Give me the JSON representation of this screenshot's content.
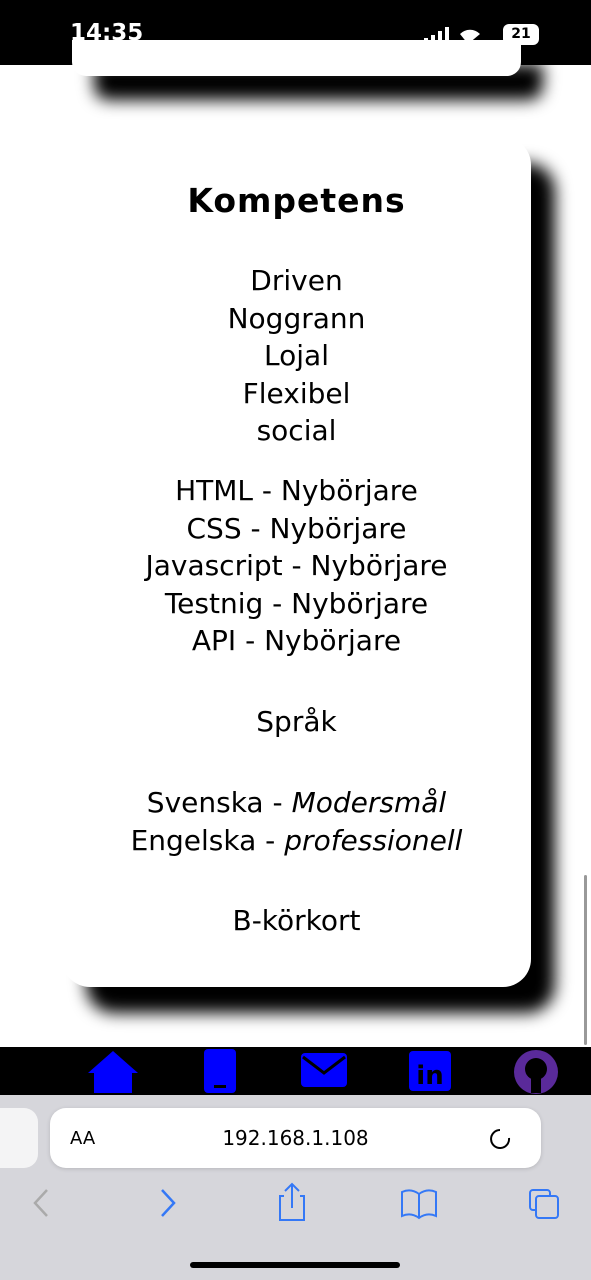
{
  "status_bar": {
    "time": "14:35",
    "battery": "21"
  },
  "card": {
    "title": "Kompetens",
    "traits": [
      "Driven",
      "Noggrann",
      "Lojal",
      "Flexibel",
      "social"
    ],
    "skills": [
      "HTML - Nybörjare",
      "CSS - Nybörjare",
      "Javascript - Nybörjare",
      "Testnig - Nybörjare",
      "API - Nybörjare"
    ],
    "languages_title": "Språk",
    "languages": [
      {
        "name": "Svenska -",
        "level": "Modersmål"
      },
      {
        "name": "Engelska -",
        "level": "professionell"
      }
    ],
    "license": "B-körkort"
  },
  "browser": {
    "text_size": "AA",
    "url": "192.168.1.108"
  }
}
